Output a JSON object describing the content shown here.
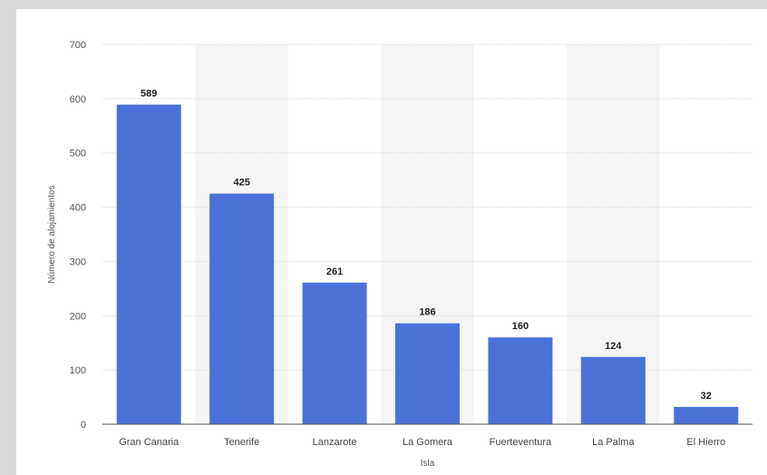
{
  "chart_data": {
    "type": "bar",
    "categories": [
      "Gran Canaria",
      "Tenerife",
      "Lanzarote",
      "La Gomera",
      "Fuerteventura",
      "La Palma",
      "El Hierro"
    ],
    "values": [
      589,
      425,
      261,
      186,
      160,
      124,
      32
    ],
    "value_labels": [
      "589",
      "425",
      "261",
      "186",
      "160",
      "124",
      "32"
    ],
    "xlabel": "Isla",
    "ylabel": "Número de alojamientos",
    "ylim": [
      0,
      700
    ],
    "yticks": [
      0,
      100,
      200,
      300,
      400,
      500,
      600,
      700
    ],
    "grid": true,
    "colors": {
      "bar": "#4a72d9",
      "alt_band": "#f5f5f5",
      "gridline": "#d8d8d8",
      "baseline": "#555555"
    }
  }
}
